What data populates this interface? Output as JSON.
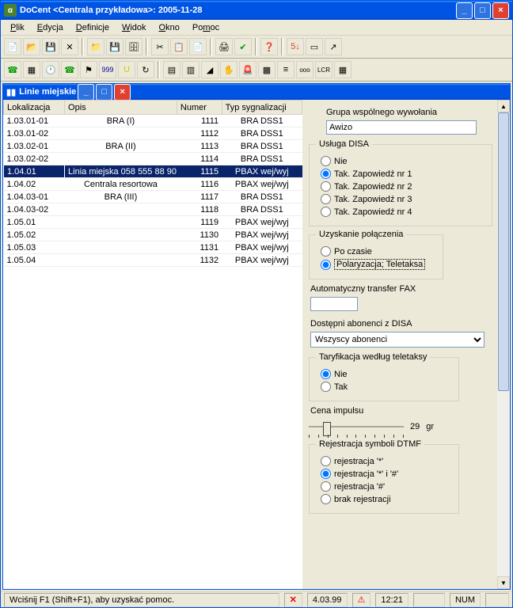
{
  "app": {
    "title": "DoCent <Centrala przykładowa>: 2005-11-28",
    "inner_title": "Linie miejskie",
    "status_help": "Wciśnij F1 (Shift+F1), aby uzyskać pomoc.",
    "status_version": "4.03.99",
    "status_time": "12:21",
    "status_num": "NUM"
  },
  "menu": {
    "items": [
      "Plik",
      "Edycja",
      "Definicje",
      "Widok",
      "Okno",
      "Pomoc"
    ]
  },
  "grid": {
    "columns": [
      "Lokalizacja",
      "Opis",
      "Numer",
      "Typ sygnalizacji"
    ],
    "rows": [
      {
        "lok": "1.03.01-01",
        "opis": "BRA (I)",
        "num": "1111",
        "typ": "BRA DSS1"
      },
      {
        "lok": "1.03.01-02",
        "opis": "",
        "num": "1112",
        "typ": "BRA DSS1"
      },
      {
        "lok": "1.03.02-01",
        "opis": "BRA (II)",
        "num": "1113",
        "typ": "BRA DSS1"
      },
      {
        "lok": "1.03.02-02",
        "opis": "",
        "num": "1114",
        "typ": "BRA DSS1"
      },
      {
        "lok": "1.04.01",
        "opis": "Linia miejska 058 555 88 90",
        "num": "1115",
        "typ": "PBAX wej/wyj",
        "selected": true
      },
      {
        "lok": "1.04.02",
        "opis": "Centrala resortowa",
        "num": "1116",
        "typ": "PBAX wej/wyj"
      },
      {
        "lok": "1.04.03-01",
        "opis": "BRA (III)",
        "num": "1117",
        "typ": "BRA DSS1"
      },
      {
        "lok": "1.04.03-02",
        "opis": "",
        "num": "1118",
        "typ": "BRA DSS1"
      },
      {
        "lok": "1.05.01",
        "opis": "",
        "num": "1119",
        "typ": "PBAX wej/wyj"
      },
      {
        "lok": "1.05.02",
        "opis": "",
        "num": "1130",
        "typ": "PBAX wej/wyj"
      },
      {
        "lok": "1.05.03",
        "opis": "",
        "num": "1131",
        "typ": "PBAX wej/wyj"
      },
      {
        "lok": "1.05.04",
        "opis": "",
        "num": "1132",
        "typ": "PBAX wej/wyj"
      }
    ]
  },
  "panel": {
    "grupa_label": "Grupa wspólnego wywołania",
    "grupa_value": "Awizo",
    "disa_label": "Usługa DISA",
    "disa_options": [
      "Nie",
      "Tak. Zapowiedź nr 1",
      "Tak. Zapowiedź nr 2",
      "Tak. Zapowiedź nr 3",
      "Tak. Zapowiedź nr 4"
    ],
    "disa_selected": 1,
    "polaczenie_label": "Uzyskanie połączenia",
    "polaczenie_options": [
      "Po czasie",
      "Polaryzacja; Teletaksa"
    ],
    "polaczenie_selected": 1,
    "fax_label": "Automatyczny transfer FAX",
    "fax_value": "",
    "abonenci_label": "Dostępni abonenci z DISA",
    "abonenci_value": "Wszyscy abonenci",
    "taryf_label": "Taryfikacja według teletaksy",
    "taryf_options": [
      "Nie",
      "Tak"
    ],
    "taryf_selected": 0,
    "cena_label": "Cena impulsu",
    "cena_value": "29",
    "cena_unit": "gr",
    "dtmf_label": "Rejestracja symboli DTMF",
    "dtmf_options": [
      "rejestracja '*'",
      "rejestracja '*' i '#'",
      "rejestracja '#'",
      "brak rejestracji"
    ],
    "dtmf_selected": 1
  }
}
